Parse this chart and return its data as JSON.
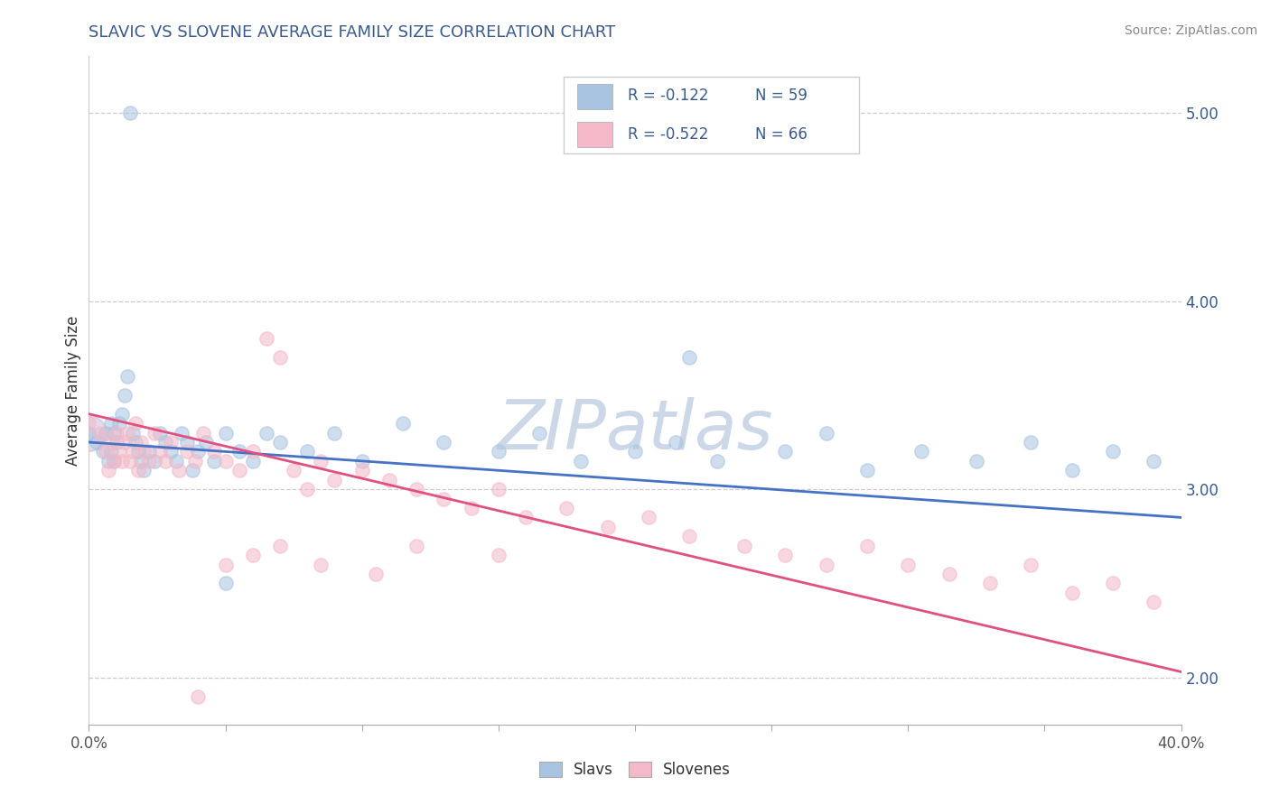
{
  "title": "SLAVIC VS SLOVENE AVERAGE FAMILY SIZE CORRELATION CHART",
  "source": "Source: ZipAtlas.com",
  "ylabel": "Average Family Size",
  "y_ticks": [
    2.0,
    3.0,
    4.0,
    5.0
  ],
  "slavs_R": -0.122,
  "slavs_N": 59,
  "slovenes_R": -0.522,
  "slovenes_N": 66,
  "slavs_color": "#a8c4e0",
  "slovenes_color": "#f4b8c8",
  "slavs_line_color": "#4472c4",
  "slovenes_line_color": "#e05080",
  "legend_slavs": "Slavs",
  "legend_slovenes": "Slovenes",
  "watermark": "ZIPatlas",
  "slavs_x": [
    0.0,
    0.003,
    0.005,
    0.006,
    0.007,
    0.008,
    0.008,
    0.009,
    0.009,
    0.01,
    0.011,
    0.012,
    0.013,
    0.014,
    0.015,
    0.016,
    0.017,
    0.018,
    0.019,
    0.02,
    0.022,
    0.024,
    0.026,
    0.028,
    0.03,
    0.032,
    0.034,
    0.036,
    0.038,
    0.04,
    0.043,
    0.046,
    0.05,
    0.055,
    0.06,
    0.065,
    0.07,
    0.08,
    0.09,
    0.1,
    0.115,
    0.13,
    0.15,
    0.165,
    0.18,
    0.2,
    0.215,
    0.23,
    0.255,
    0.27,
    0.285,
    0.305,
    0.325,
    0.345,
    0.36,
    0.375,
    0.39,
    0.22,
    0.05
  ],
  "slavs_y": [
    3.3,
    3.25,
    3.2,
    3.3,
    3.15,
    3.35,
    3.2,
    3.15,
    3.3,
    3.25,
    3.35,
    3.4,
    3.5,
    3.6,
    5.0,
    3.3,
    3.25,
    3.2,
    3.15,
    3.1,
    3.2,
    3.15,
    3.3,
    3.25,
    3.2,
    3.15,
    3.3,
    3.25,
    3.1,
    3.2,
    3.25,
    3.15,
    3.3,
    3.2,
    3.15,
    3.3,
    3.25,
    3.2,
    3.3,
    3.15,
    3.35,
    3.25,
    3.2,
    3.3,
    3.15,
    3.2,
    3.25,
    3.15,
    3.2,
    3.3,
    3.1,
    3.2,
    3.15,
    3.25,
    3.1,
    3.2,
    3.15,
    3.7,
    2.5
  ],
  "slovenes_x": [
    0.0,
    0.004,
    0.006,
    0.007,
    0.008,
    0.009,
    0.01,
    0.011,
    0.012,
    0.013,
    0.014,
    0.015,
    0.016,
    0.017,
    0.018,
    0.019,
    0.02,
    0.022,
    0.024,
    0.026,
    0.028,
    0.03,
    0.033,
    0.036,
    0.039,
    0.042,
    0.046,
    0.05,
    0.055,
    0.06,
    0.065,
    0.07,
    0.075,
    0.08,
    0.085,
    0.09,
    0.1,
    0.11,
    0.12,
    0.13,
    0.14,
    0.15,
    0.16,
    0.175,
    0.19,
    0.205,
    0.22,
    0.24,
    0.255,
    0.27,
    0.285,
    0.3,
    0.315,
    0.33,
    0.345,
    0.36,
    0.375,
    0.39,
    0.15,
    0.12,
    0.085,
    0.105,
    0.07,
    0.06,
    0.05,
    0.04
  ],
  "slovenes_y": [
    3.35,
    3.3,
    3.2,
    3.1,
    3.25,
    3.15,
    3.3,
    3.2,
    3.15,
    3.25,
    3.3,
    3.15,
    3.2,
    3.35,
    3.1,
    3.25,
    3.2,
    3.15,
    3.3,
    3.2,
    3.15,
    3.25,
    3.1,
    3.2,
    3.15,
    3.3,
    3.2,
    3.15,
    3.1,
    3.2,
    3.8,
    3.7,
    3.1,
    3.0,
    3.15,
    3.05,
    3.1,
    3.05,
    3.0,
    2.95,
    2.9,
    3.0,
    2.85,
    2.9,
    2.8,
    2.85,
    2.75,
    2.7,
    2.65,
    2.6,
    2.7,
    2.6,
    2.55,
    2.5,
    2.6,
    2.45,
    2.5,
    2.4,
    2.65,
    2.7,
    2.6,
    2.55,
    2.7,
    2.65,
    2.6,
    1.9
  ],
  "xlim": [
    0.0,
    0.4
  ],
  "ylim": [
    1.75,
    5.3
  ],
  "title_color": "#3a5a8c",
  "source_color": "#888888",
  "axis_label_color": "#333333",
  "tick_color": "#555555",
  "watermark_color": "#ccd8e8",
  "background_color": "#ffffff",
  "grid_color": "#cccccc",
  "legend_text_color": "#3a5a8c"
}
